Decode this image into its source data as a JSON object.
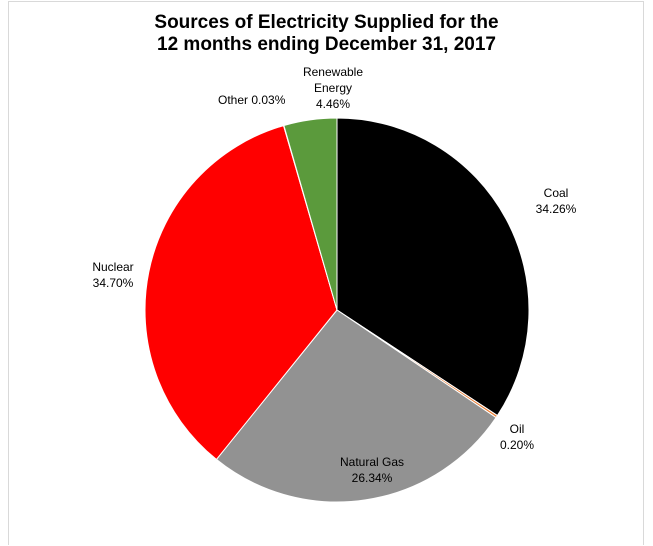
{
  "chart_data": {
    "type": "pie",
    "title_lines": [
      "Sources of Electricity Supplied for the",
      "12 months ending December 31, 2017"
    ],
    "start_angle_deg": 0,
    "direction": "clockwise",
    "legend": "none",
    "slices": [
      {
        "name": "Coal",
        "value": 34.26,
        "color": "#000000",
        "label_lines": [
          "Coal",
          "34.26%"
        ]
      },
      {
        "name": "Oil",
        "value": 0.2,
        "color": "#ed7d31",
        "label_lines": [
          "Oil",
          "0.20%"
        ]
      },
      {
        "name": "Natural Gas",
        "value": 26.34,
        "color": "#929292",
        "label_lines": [
          "Natural Gas",
          "26.34%"
        ]
      },
      {
        "name": "Nuclear",
        "value": 34.7,
        "color": "#ff0000",
        "label_lines": [
          "Nuclear",
          "34.70%"
        ]
      },
      {
        "name": "Other",
        "value": 0.03,
        "color": "#4472c4",
        "label_lines": [
          "Other 0.03%"
        ]
      },
      {
        "name": "Renewable Energy",
        "value": 4.46,
        "color": "#5b9a3c",
        "label_lines": [
          "Renewable",
          "Energy",
          "4.46%"
        ]
      }
    ]
  }
}
